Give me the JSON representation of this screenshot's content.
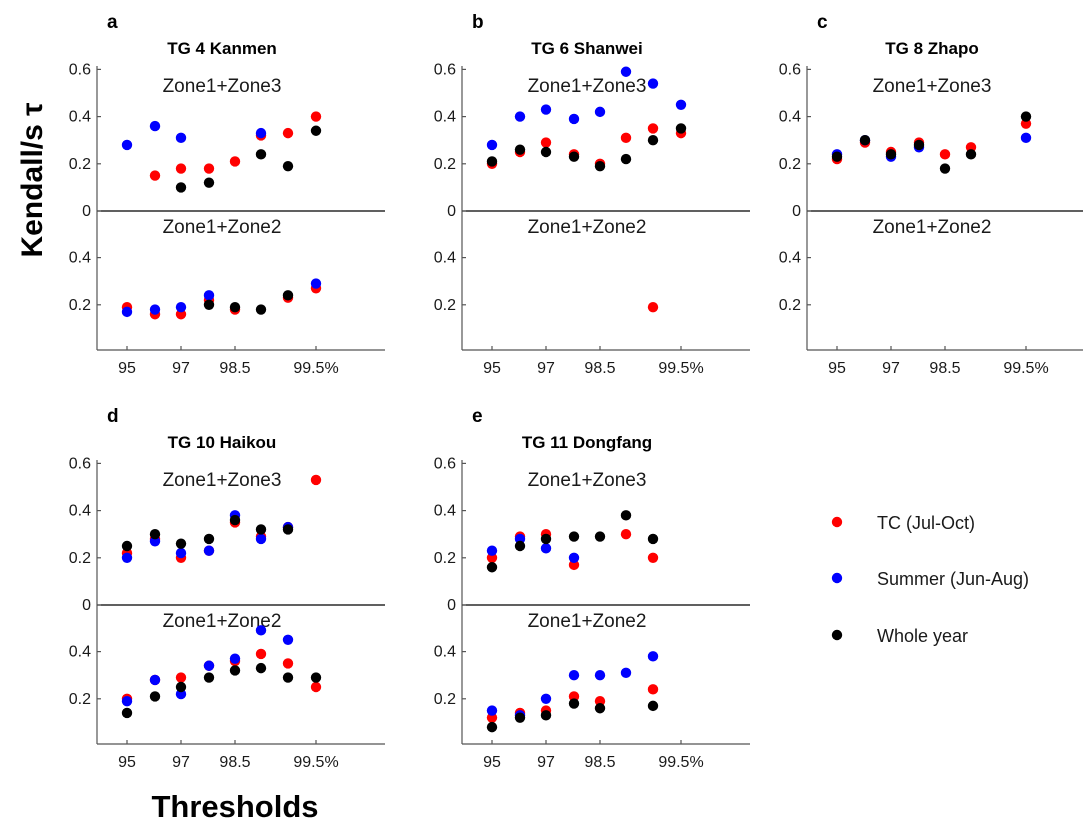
{
  "figure": {
    "ylabel": "Kendall/s τ",
    "xlabel": "Thresholds"
  },
  "legend": [
    {
      "name": "TC (Jul-Oct)",
      "color": "#ff0000"
    },
    {
      "name": "Summer (Jun-Aug)",
      "color": "#0000ff"
    },
    {
      "name": "Whole year",
      "color": "#000000"
    }
  ],
  "chart_data": [
    {
      "type": "scatter",
      "panel": "a",
      "title": "TG 4 Kanmen",
      "x_ticks": [
        "95",
        "97",
        "98.5",
        "99.5%"
      ],
      "y_ticks_top": [
        "0.6",
        "0.4",
        "0.2",
        "0"
      ],
      "y_ticks_bottom": [
        "0.4",
        "0.2"
      ],
      "x_positions": [
        "95",
        "96",
        "97",
        "98",
        "98.5",
        "99",
        "99.2",
        "99.5%"
      ],
      "zone_top_label": "Zone1+Zone3",
      "zone_bottom_label": "Zone1+Zone2",
      "zone_top": [
        {
          "name": "TC (Jul-Oct)",
          "values": [
            null,
            0.15,
            0.18,
            0.18,
            0.21,
            0.32,
            0.33,
            0.4
          ]
        },
        {
          "name": "Summer (Jun-Aug)",
          "values": [
            0.28,
            0.36,
            0.31,
            null,
            null,
            0.33,
            null,
            null
          ]
        },
        {
          "name": "Whole year",
          "values": [
            null,
            null,
            0.1,
            0.12,
            null,
            0.24,
            0.19,
            0.34
          ]
        }
      ],
      "zone_bottom": [
        {
          "name": "TC (Jul-Oct)",
          "values": [
            0.19,
            0.16,
            0.16,
            0.22,
            0.18,
            null,
            0.23,
            0.27
          ]
        },
        {
          "name": "Summer (Jun-Aug)",
          "values": [
            0.17,
            0.18,
            0.19,
            0.24,
            null,
            null,
            null,
            0.29
          ]
        },
        {
          "name": "Whole year",
          "values": [
            null,
            null,
            null,
            0.2,
            0.19,
            0.18,
            0.24,
            null
          ]
        }
      ]
    },
    {
      "type": "scatter",
      "panel": "b",
      "title": "TG 6 Shanwei",
      "x_ticks": [
        "95",
        "97",
        "98.5",
        "99.5%"
      ],
      "y_ticks_top": [
        "0.6",
        "0.4",
        "0.2",
        "0"
      ],
      "y_ticks_bottom": [
        "0.4",
        "0.2"
      ],
      "x_positions": [
        "95",
        "96",
        "97",
        "98",
        "98.5",
        "99",
        "99.2",
        "99.5%"
      ],
      "zone_top_label": "Zone1+Zone3",
      "zone_bottom_label": "Zone1+Zone2",
      "zone_top": [
        {
          "name": "TC (Jul-Oct)",
          "values": [
            0.2,
            0.25,
            0.29,
            0.24,
            0.2,
            0.31,
            0.35,
            0.33
          ]
        },
        {
          "name": "Summer (Jun-Aug)",
          "values": [
            0.28,
            0.4,
            0.43,
            0.39,
            0.42,
            0.59,
            0.54,
            0.45
          ]
        },
        {
          "name": "Whole year",
          "values": [
            0.21,
            0.26,
            0.25,
            0.23,
            0.19,
            0.22,
            0.3,
            0.35
          ]
        }
      ],
      "zone_bottom": [
        {
          "name": "TC (Jul-Oct)",
          "values": [
            null,
            null,
            null,
            null,
            null,
            null,
            0.19,
            null
          ]
        },
        {
          "name": "Summer (Jun-Aug)",
          "values": [
            null,
            null,
            null,
            null,
            null,
            null,
            null,
            null
          ]
        },
        {
          "name": "Whole year",
          "values": [
            null,
            null,
            null,
            null,
            null,
            null,
            null,
            null
          ]
        }
      ]
    },
    {
      "type": "scatter",
      "panel": "c",
      "title": "TG 8 Zhapo",
      "x_ticks": [
        "95",
        "97",
        "98.5",
        "99.5%"
      ],
      "y_ticks_top": [
        "0.6",
        "0.4",
        "0.2",
        "0"
      ],
      "y_ticks_bottom": [
        "0.4",
        "0.2"
      ],
      "x_positions": [
        "95",
        "96",
        "97",
        "98",
        "98.5",
        "99",
        "99.2",
        "99.5%"
      ],
      "zone_top_label": "Zone1+Zone3",
      "zone_bottom_label": "Zone1+Zone2",
      "zone_top": [
        {
          "name": "TC (Jul-Oct)",
          "values": [
            0.22,
            0.29,
            0.25,
            0.29,
            0.24,
            0.27,
            null,
            0.37
          ]
        },
        {
          "name": "Summer (Jun-Aug)",
          "values": [
            0.24,
            0.3,
            0.23,
            0.27,
            null,
            null,
            null,
            0.31
          ]
        },
        {
          "name": "Whole year",
          "values": [
            0.23,
            0.3,
            0.24,
            0.28,
            0.18,
            0.24,
            null,
            0.4
          ]
        }
      ],
      "zone_bottom": [
        {
          "name": "TC (Jul-Oct)",
          "values": [
            null,
            null,
            null,
            null,
            null,
            null,
            null,
            null
          ]
        },
        {
          "name": "Summer (Jun-Aug)",
          "values": [
            null,
            null,
            null,
            null,
            null,
            null,
            null,
            null
          ]
        },
        {
          "name": "Whole year",
          "values": [
            null,
            null,
            null,
            null,
            null,
            null,
            null,
            null
          ]
        }
      ]
    },
    {
      "type": "scatter",
      "panel": "d",
      "title": "TG 10 Haikou",
      "x_ticks": [
        "95",
        "97",
        "98.5",
        "99.5%"
      ],
      "y_ticks_top": [
        "0.6",
        "0.4",
        "0.2",
        "0"
      ],
      "y_ticks_bottom": [
        "0.4",
        "0.2"
      ],
      "x_positions": [
        "95",
        "96",
        "97",
        "98",
        "98.5",
        "99",
        "99.2",
        "99.5%"
      ],
      "zone_top_label": "Zone1+Zone3",
      "zone_bottom_label": "Zone1+Zone2",
      "zone_top": [
        {
          "name": "TC (Jul-Oct)",
          "values": [
            0.22,
            0.28,
            0.2,
            0.23,
            0.35,
            0.29,
            0.33,
            0.53
          ]
        },
        {
          "name": "Summer (Jun-Aug)",
          "values": [
            0.2,
            0.27,
            0.22,
            0.23,
            0.38,
            0.28,
            0.33,
            null
          ]
        },
        {
          "name": "Whole year",
          "values": [
            0.25,
            0.3,
            0.26,
            0.28,
            0.36,
            0.32,
            0.32,
            null
          ]
        }
      ],
      "zone_bottom": [
        {
          "name": "TC (Jul-Oct)",
          "values": [
            0.2,
            0.28,
            0.29,
            0.34,
            0.36,
            0.39,
            0.35,
            0.25
          ]
        },
        {
          "name": "Summer (Jun-Aug)",
          "values": [
            0.19,
            0.28,
            0.22,
            0.34,
            0.37,
            0.49,
            0.45,
            null
          ]
        },
        {
          "name": "Whole year",
          "values": [
            0.14,
            0.21,
            0.25,
            0.29,
            0.32,
            0.33,
            0.29,
            0.29
          ]
        }
      ]
    },
    {
      "type": "scatter",
      "panel": "e",
      "title": "TG 11 Dongfang",
      "x_ticks": [
        "95",
        "97",
        "98.5",
        "99.5%"
      ],
      "y_ticks_top": [
        "0.6",
        "0.4",
        "0.2",
        "0"
      ],
      "y_ticks_bottom": [
        "0.4",
        "0.2"
      ],
      "x_positions": [
        "95",
        "96",
        "97",
        "98",
        "98.5",
        "99",
        "99.2",
        "99.5%"
      ],
      "zone_top_label": "Zone1+Zone3",
      "zone_bottom_label": "Zone1+Zone2",
      "zone_top": [
        {
          "name": "TC (Jul-Oct)",
          "values": [
            0.2,
            0.29,
            0.3,
            0.17,
            null,
            0.3,
            0.2,
            null
          ]
        },
        {
          "name": "Summer (Jun-Aug)",
          "values": [
            0.23,
            0.28,
            0.24,
            0.2,
            null,
            null,
            null,
            null
          ]
        },
        {
          "name": "Whole year",
          "values": [
            0.16,
            0.25,
            0.28,
            0.29,
            0.29,
            0.38,
            0.28,
            null
          ]
        }
      ],
      "zone_bottom": [
        {
          "name": "TC (Jul-Oct)",
          "values": [
            0.12,
            0.14,
            0.15,
            0.21,
            0.19,
            null,
            0.24,
            null
          ]
        },
        {
          "name": "Summer (Jun-Aug)",
          "values": [
            0.15,
            0.13,
            0.2,
            0.3,
            0.3,
            0.31,
            0.38,
            null
          ]
        },
        {
          "name": "Whole year",
          "values": [
            0.08,
            0.12,
            0.13,
            0.18,
            0.16,
            null,
            0.17,
            null
          ]
        }
      ]
    }
  ]
}
